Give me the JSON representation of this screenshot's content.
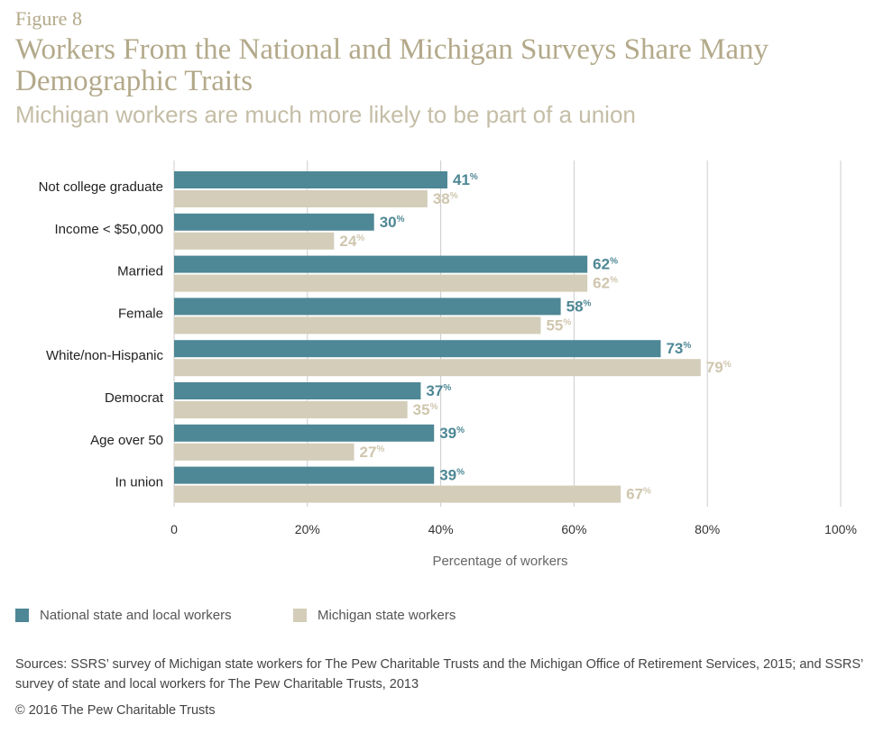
{
  "figure_label": "Figure 8",
  "title": "Workers From the National and Michigan Surveys Share Many Demographic Traits",
  "subtitle": "Michigan workers are much more likely to be part of a union",
  "colors": {
    "national": "#4e8795",
    "michigan": "#d3cdb9",
    "michigan_label": "#cfc6ae",
    "grid": "#cccccc"
  },
  "legend": {
    "national": "National state and local workers",
    "michigan": "Michigan state workers"
  },
  "sources": "Sources: SSRS’ survey of Michigan state workers for The Pew Charitable Trusts and the Michigan Office of Retirement Services, 2015; and SSRS’ survey of state and local workers for The Pew Charitable Trusts, 2013",
  "copyright": "© 2016 The Pew Charitable Trusts",
  "chart_data": {
    "type": "bar",
    "orientation": "horizontal",
    "categories": [
      "Not college graduate",
      "Income < $50,000",
      "Married",
      "Female",
      "White/non-Hispanic",
      "Democrat",
      "Age over 50",
      "In union"
    ],
    "series": [
      {
        "name": "National state and local workers",
        "values": [
          41,
          30,
          62,
          58,
          73,
          37,
          39,
          39
        ]
      },
      {
        "name": "Michigan state workers",
        "values": [
          38,
          24,
          62,
          55,
          79,
          35,
          27,
          67
        ]
      }
    ],
    "value_suffix": "%",
    "xlabel": "Percentage of workers",
    "xlim": [
      0,
      100
    ],
    "xticks": [
      "0",
      "20%",
      "40%",
      "60%",
      "80%",
      "100%"
    ],
    "grid": true,
    "legend_position": "bottom-left"
  }
}
